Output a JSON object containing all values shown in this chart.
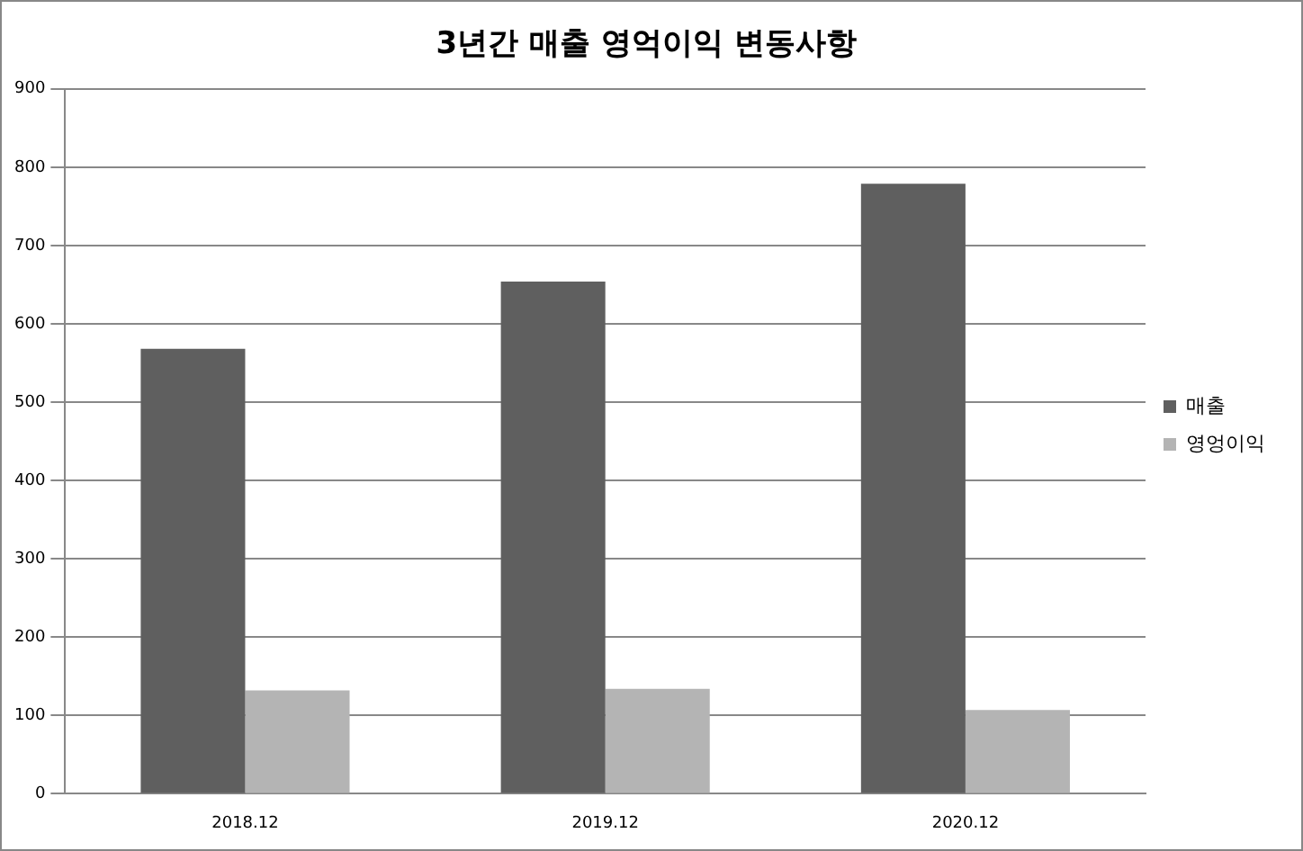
{
  "chart_data": {
    "type": "bar",
    "title": "3년간 매출 영억이익 변동사항",
    "categories": [
      "2018.12",
      "2019.12",
      "2020.12"
    ],
    "series": [
      {
        "name": "매출",
        "color": "#5f5f5f",
        "values": [
          568,
          654,
          779
        ]
      },
      {
        "name": "영엉이익",
        "color": "#b4b4b4",
        "values": [
          132,
          134,
          107
        ]
      }
    ],
    "ylim": [
      0,
      900
    ],
    "yticks": [
      0,
      100,
      200,
      300,
      400,
      500,
      600,
      700,
      800,
      900
    ],
    "grid": "y",
    "legend": "right"
  }
}
